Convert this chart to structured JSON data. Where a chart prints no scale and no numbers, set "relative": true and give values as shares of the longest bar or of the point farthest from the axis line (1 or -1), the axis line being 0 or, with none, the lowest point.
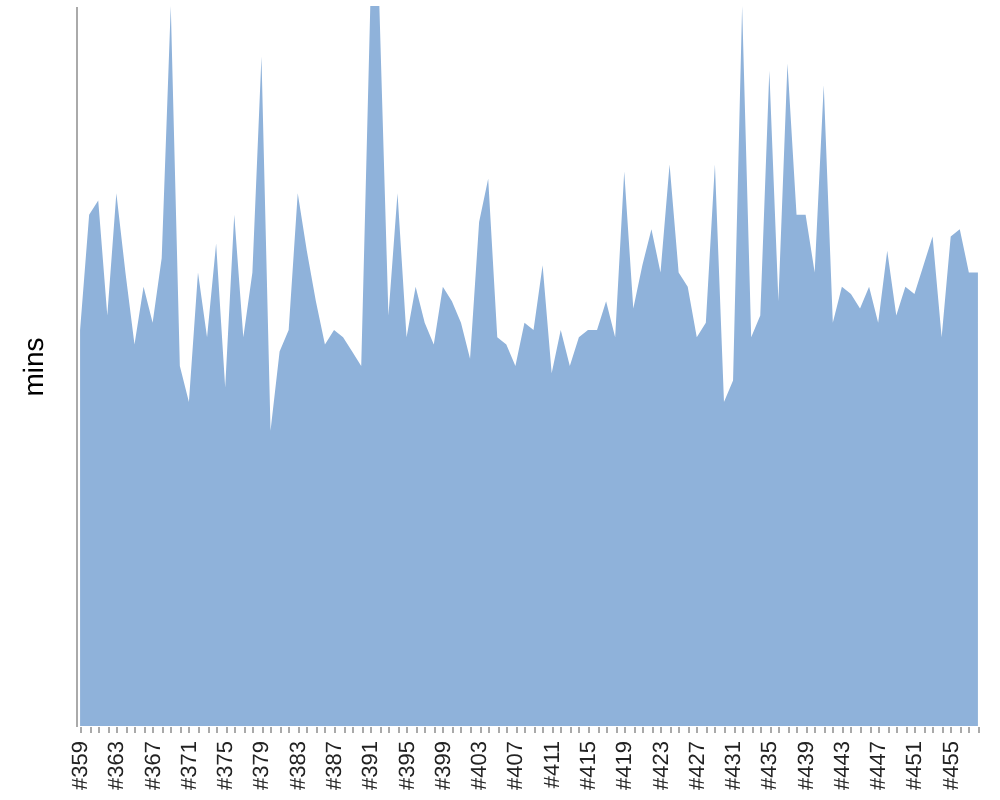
{
  "chart_data": {
    "type": "area",
    "ylabel": "mins",
    "color": "#8fb2da",
    "relative": true,
    "categories": [
      "#359",
      null,
      null,
      null,
      "#363",
      null,
      null,
      null,
      "#367",
      null,
      null,
      null,
      "#371",
      null,
      null,
      null,
      "#375",
      null,
      null,
      null,
      "#379",
      null,
      null,
      null,
      "#383",
      null,
      null,
      null,
      "#387",
      null,
      null,
      null,
      "#391",
      null,
      null,
      null,
      "#395",
      null,
      null,
      null,
      "#399",
      null,
      null,
      null,
      "#403",
      null,
      null,
      null,
      "#407",
      null,
      null,
      null,
      "#411",
      null,
      null,
      null,
      "#415",
      null,
      null,
      null,
      "#419",
      null,
      null,
      null,
      "#423",
      null,
      null,
      null,
      "#427",
      null,
      null,
      null,
      "#431",
      null,
      null,
      null,
      "#435",
      null,
      null,
      null,
      "#439",
      null,
      null,
      null,
      "#443",
      null,
      null,
      null,
      "#447",
      null,
      null,
      null,
      "#451",
      null,
      null,
      null,
      "#455",
      null,
      null,
      null
    ],
    "values": [
      0.55,
      0.71,
      0.73,
      0.57,
      0.74,
      0.63,
      0.53,
      0.61,
      0.56,
      0.65,
      1,
      0.5,
      0.45,
      0.63,
      0.54,
      0.67,
      0.47,
      0.71,
      0.54,
      0.63,
      0.93,
      0.41,
      0.52,
      0.55,
      0.74,
      0.66,
      0.59,
      0.53,
      0.55,
      0.54,
      0.52,
      0.5,
      1,
      1,
      0.57,
      0.74,
      0.54,
      0.61,
      0.56,
      0.53,
      0.61,
      0.59,
      0.56,
      0.51,
      0.7,
      0.76,
      0.54,
      0.53,
      0.5,
      0.56,
      0.55,
      0.64,
      0.49,
      0.55,
      0.5,
      0.54,
      0.55,
      0.55,
      0.59,
      0.54,
      0.77,
      0.58,
      0.64,
      0.69,
      0.63,
      0.78,
      0.63,
      0.61,
      0.54,
      0.56,
      0.78,
      0.45,
      0.48,
      1,
      0.54,
      0.57,
      0.91,
      0.59,
      0.92,
      0.71,
      0.71,
      0.63,
      0.89,
      0.56,
      0.61,
      0.6,
      0.58,
      0.61,
      0.56,
      0.66,
      0.57,
      0.61,
      0.6,
      0.64,
      0.68,
      0.54,
      0.68,
      0.69,
      0.63,
      0.63
    ]
  }
}
